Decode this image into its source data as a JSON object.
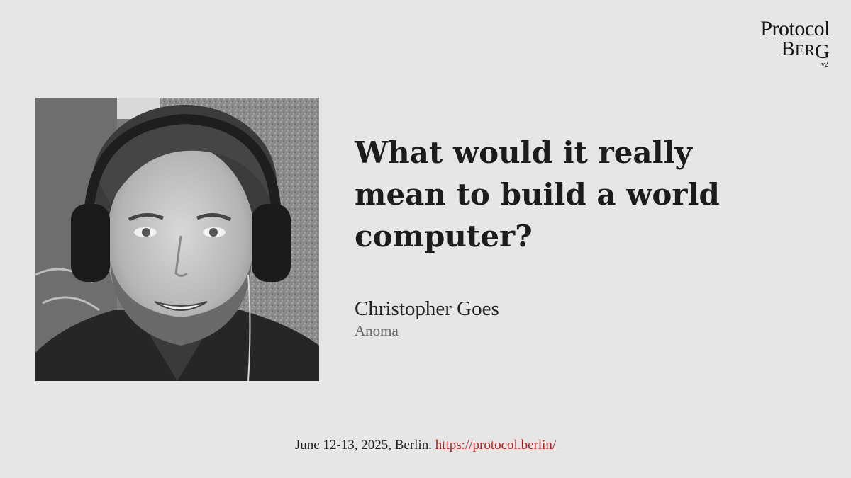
{
  "logo": {
    "line1": "Protocol",
    "line2_b": "B",
    "line2_er": "ER",
    "line2_g": "G",
    "version": "v2"
  },
  "talk": {
    "title_line1": "What would it really",
    "title_line2": "mean to build a world",
    "title_line3": "computer?",
    "speaker": "Christopher Goes",
    "organization": "Anoma"
  },
  "footer": {
    "date_location": "June 12-13, 2025, Berlin.",
    "link_text": "https://protocol.berlin/"
  },
  "colors": {
    "background": "#e6e6e6",
    "link": "#b22222",
    "text": "#1c1c1c",
    "muted": "#666666"
  }
}
